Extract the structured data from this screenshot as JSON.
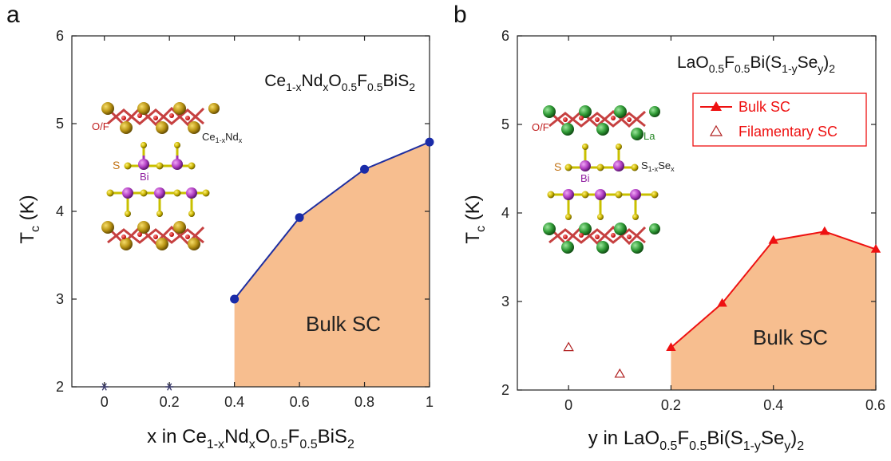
{
  "chart_data": [
    {
      "panel_label": "a",
      "type": "line",
      "annotation": {
        "main": "Ce",
        "s1": "1-x",
        "m2": "Nd",
        "s2": "x",
        "m3": "O",
        "s3": "0.5",
        "m4": "F",
        "s4": "0.5",
        "m5": "BiS",
        "s5": "2"
      },
      "xlabel": {
        "pre": "x in Ce",
        "s1": "1-x",
        "m2": "Nd",
        "s2": "x",
        "m3": "O",
        "s3": "0.5",
        "m4": "F",
        "s4": "0.5",
        "m5": "BiS",
        "s5": "2"
      },
      "ylabel": {
        "main": "T",
        "sub": "c",
        "unit": " (K)"
      },
      "xlim": [
        -0.1,
        1.0
      ],
      "ylim": [
        2,
        6
      ],
      "xticks": [
        0,
        0.2,
        0.4,
        0.6,
        0.8,
        1
      ],
      "xtick_labels": [
        "0",
        "0.2",
        "0.4",
        "0.6",
        "0.8",
        "1"
      ],
      "yticks": [
        2,
        3,
        4,
        5,
        6
      ],
      "ytick_labels": [
        "2",
        "3",
        "4",
        "5",
        "6"
      ],
      "series": [
        {
          "marker": "circle",
          "color": "#1f2fa0",
          "x": [
            0.4,
            0.6,
            0.8,
            1.0
          ],
          "y": [
            3.0,
            3.93,
            4.48,
            4.79
          ]
        },
        {
          "marker": "star",
          "color": "#3a3a6a",
          "x": [
            0,
            0.2
          ],
          "y": [
            2.0,
            2.0
          ]
        }
      ],
      "region": {
        "label": "Bulk SC",
        "color": "#f7be8f",
        "x_start": 0.4
      },
      "structure_labels": {
        "o_f": "O/F",
        "cation_main": "Ce",
        "cation_sub": "1-x",
        "cation_main2": "Nd",
        "cation_sub2": "x",
        "s": "S",
        "bi": "Bi"
      }
    },
    {
      "panel_label": "b",
      "type": "line",
      "annotation": {
        "main": "LaO",
        "s1": "0.5",
        "m2": "F",
        "s2": "0.5",
        "m3": "Bi(S",
        "s3": "1-y",
        "m4": "Se",
        "s4": "y",
        "m5": ")",
        "s5": "2"
      },
      "xlabel": {
        "pre": "y in LaO",
        "s1": "0.5",
        "m2": "F",
        "s2": "0.5",
        "m3": "Bi(S",
        "s3": "1-y",
        "m4": "Se",
        "s4": "y",
        "m5": ")",
        "s5": "2"
      },
      "ylabel": {
        "main": "T",
        "sub": "c",
        "unit": " (K)"
      },
      "xlim": [
        -0.1,
        0.6
      ],
      "ylim": [
        2,
        6
      ],
      "xticks": [
        0,
        0.2,
        0.4,
        0.6
      ],
      "xtick_labels": [
        "0",
        "0.2",
        "0.4",
        "0.6"
      ],
      "yticks": [
        2,
        3,
        4,
        5,
        6
      ],
      "ytick_labels": [
        "2",
        "3",
        "4",
        "5",
        "6"
      ],
      "series": [
        {
          "name": "Bulk SC",
          "marker": "triangle",
          "color": "#ee1111",
          "x": [
            0.2,
            0.3,
            0.4,
            0.5,
            0.6
          ],
          "y": [
            2.48,
            2.98,
            3.69,
            3.79,
            3.59
          ]
        },
        {
          "name": "Filamentary SC",
          "marker": "triangle-open",
          "color": "#b02020",
          "x": [
            0.0,
            0.1
          ],
          "y": [
            2.48,
            2.18
          ]
        }
      ],
      "legend": {
        "placement": "top-right"
      },
      "region": {
        "label": "Bulk SC",
        "color": "#f7be8f",
        "x_start": 0.2
      },
      "structure_labels": {
        "o_f": "O/F",
        "cation_main": "La",
        "s": "S",
        "bi": "Bi",
        "se_main": "S",
        "se_sub": "1-x",
        "se_main2": "Se",
        "se_sub2": "x"
      }
    }
  ]
}
